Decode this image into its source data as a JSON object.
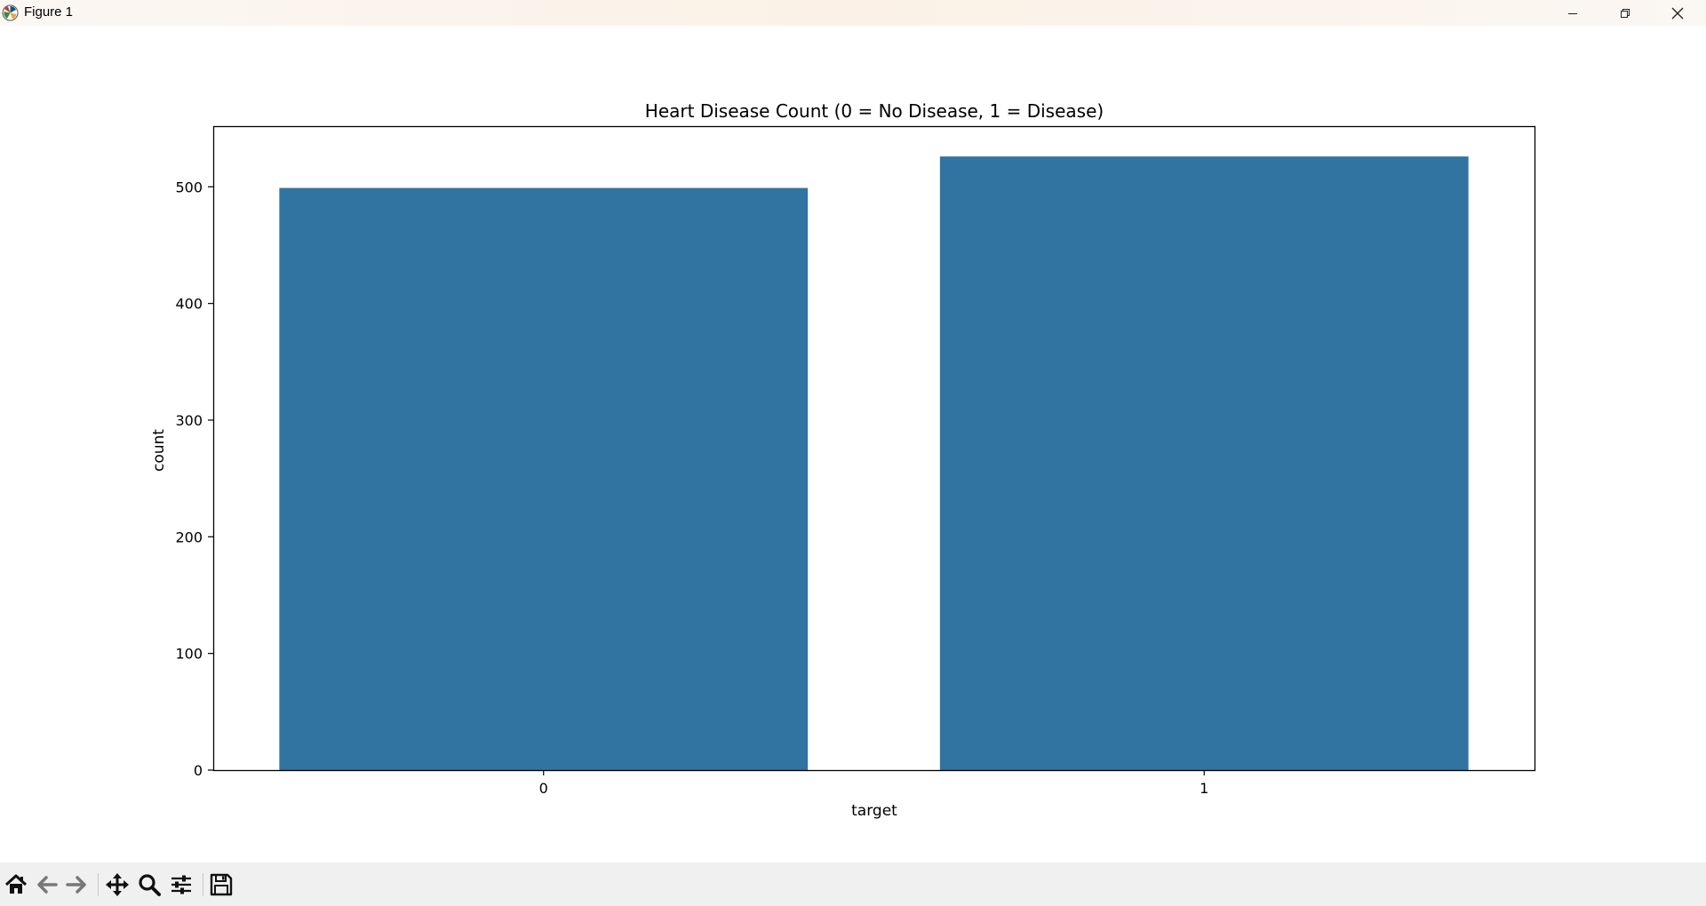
{
  "window": {
    "title": "Figure 1",
    "controls": {
      "minimize_icon": "minimize-icon",
      "maximize_icon": "restore-icon",
      "close_icon": "close-icon"
    }
  },
  "toolbar": {
    "buttons": [
      {
        "name": "home-button",
        "icon": "home-icon"
      },
      {
        "name": "back-button",
        "icon": "back-arrow-icon"
      },
      {
        "name": "forward-button",
        "icon": "forward-arrow-icon"
      },
      {
        "name": "pan-button",
        "icon": "move-icon"
      },
      {
        "name": "zoom-button",
        "icon": "magnifier-icon"
      },
      {
        "name": "configure-subplots-button",
        "icon": "sliders-icon"
      },
      {
        "name": "save-button",
        "icon": "floppy-disk-icon"
      }
    ]
  },
  "colors": {
    "bar": "#3274a1",
    "axes": "#000000",
    "background": "#ffffff",
    "toolbar_bg": "#f0f0f0"
  },
  "chart_data": {
    "type": "bar",
    "title": "Heart Disease Count (0 = No Disease, 1 = Disease)",
    "xlabel": "target",
    "ylabel": "count",
    "categories": [
      "0",
      "1"
    ],
    "values": [
      499,
      526
    ],
    "ylim": [
      0,
      552
    ],
    "yticks": [
      0,
      100,
      200,
      300,
      400,
      500
    ],
    "grid": false,
    "legend": "none"
  }
}
